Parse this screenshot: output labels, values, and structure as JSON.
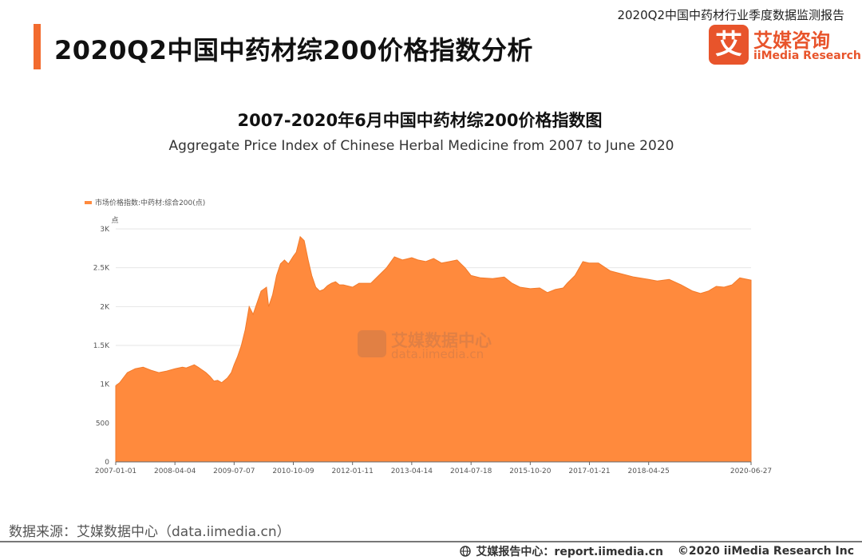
{
  "header": {
    "report_name": "2020Q2中国中药材行业季度数据监测报告",
    "page_title": "2020Q2中国中药材综200价格指数分析"
  },
  "logo": {
    "mark_char": "艾",
    "name_cn": "艾媒咨询",
    "name_en": "iiMedia Research",
    "color": "#e8542b"
  },
  "watermark": {
    "text_cn": "艾媒数据中心",
    "text_en": "data.iimedia.cn"
  },
  "chart_data": {
    "type": "area",
    "title": "2007-2020年6月中国中药材综200价格指数图",
    "subtitle": "Aggregate Price Index of Chinese Herbal Medicine from 2007 to June 2020",
    "legend": {
      "label": "市场价格指数:中药材:综合200(点)",
      "placement": "top-left"
    },
    "ylabel": "点",
    "ylim": [
      0,
      3000
    ],
    "yticks": [
      0,
      500,
      1000,
      1500,
      2000,
      2500,
      3000
    ],
    "ytick_labels": [
      "0",
      "500",
      "1K",
      "1.5K",
      "2K",
      "2.5K",
      "3K"
    ],
    "xlabels": [
      "2007-01-01",
      "2008-04-04",
      "2009-07-07",
      "2010-10-09",
      "2012-01-11",
      "2013-04-14",
      "2014-07-18",
      "2015-10-20",
      "2017-01-21",
      "2018-04-25",
      "2020-06-27"
    ],
    "grid": "horizontal",
    "color": "#ff8a3d",
    "series": [
      {
        "x": [
          "2007-01-01",
          "2007-02-01",
          "2007-04-01",
          "2007-06-01",
          "2007-08-01",
          "2007-10-01",
          "2007-12-01",
          "2008-02-01",
          "2008-04-04",
          "2008-06-01",
          "2008-07-01",
          "2008-09-01",
          "2008-10-01",
          "2008-12-01",
          "2009-01-01",
          "2009-02-01",
          "2009-03-01",
          "2009-04-01",
          "2009-05-15",
          "2009-06-15",
          "2009-07-07",
          "2009-08-01",
          "2009-09-01",
          "2009-10-01",
          "2009-11-01",
          "2009-12-01",
          "2010-01-01",
          "2010-02-01",
          "2010-03-15",
          "2010-04-01",
          "2010-05-01",
          "2010-06-01",
          "2010-07-01",
          "2010-08-01",
          "2010-09-01",
          "2010-10-09",
          "2010-11-01",
          "2010-12-01",
          "2011-01-01",
          "2011-02-01",
          "2011-03-01",
          "2011-04-01",
          "2011-05-01",
          "2011-06-01",
          "2011-07-01",
          "2011-08-01",
          "2011-09-01",
          "2011-10-01",
          "2011-11-01",
          "2012-01-11",
          "2012-03-01",
          "2012-06-01",
          "2012-08-01",
          "2012-10-01",
          "2012-12-01",
          "2013-02-01",
          "2013-04-14",
          "2013-06-01",
          "2013-08-01",
          "2013-10-01",
          "2013-12-01",
          "2014-02-01",
          "2014-04-01",
          "2014-05-01",
          "2014-06-01",
          "2014-07-18",
          "2014-10-01",
          "2015-01-01",
          "2015-04-01",
          "2015-06-01",
          "2015-08-01",
          "2015-10-20",
          "2016-01-01",
          "2016-03-01",
          "2016-05-01",
          "2016-07-01",
          "2016-08-01",
          "2016-10-01",
          "2016-12-01",
          "2017-01-21",
          "2017-04-01",
          "2017-07-01",
          "2017-10-01",
          "2018-01-01",
          "2018-04-25",
          "2018-07-01",
          "2018-10-01",
          "2019-01-01",
          "2019-04-01",
          "2019-06-01",
          "2019-08-01",
          "2019-10-01",
          "2019-12-01",
          "2020-02-01",
          "2020-04-01",
          "2020-06-27"
        ],
        "y": [
          980,
          1020,
          1150,
          1200,
          1220,
          1180,
          1150,
          1170,
          1200,
          1220,
          1210,
          1250,
          1220,
          1150,
          1100,
          1040,
          1050,
          1020,
          1080,
          1150,
          1250,
          1350,
          1500,
          1700,
          2000,
          1900,
          2050,
          2200,
          2250,
          2000,
          2150,
          2400,
          2550,
          2600,
          2550,
          2650,
          2700,
          2900,
          2850,
          2600,
          2400,
          2250,
          2200,
          2220,
          2270,
          2300,
          2320,
          2280,
          2280,
          2250,
          2300,
          2300,
          2400,
          2500,
          2640,
          2600,
          2630,
          2600,
          2580,
          2620,
          2560,
          2580,
          2600,
          2550,
          2500,
          2400,
          2370,
          2360,
          2380,
          2300,
          2250,
          2230,
          2240,
          2180,
          2220,
          2240,
          2300,
          2400,
          2580,
          2560,
          2560,
          2460,
          2420,
          2380,
          2350,
          2330,
          2350,
          2280,
          2200,
          2170,
          2200,
          2260,
          2250,
          2280,
          2370,
          2340
        ]
      }
    ]
  },
  "footer": {
    "source": "数据来源：艾媒数据中心（data.iimedia.cn）",
    "report_center": "艾媒报告中心：report.iimedia.cn",
    "copyright": "©2020  iiMedia Research  Inc"
  }
}
